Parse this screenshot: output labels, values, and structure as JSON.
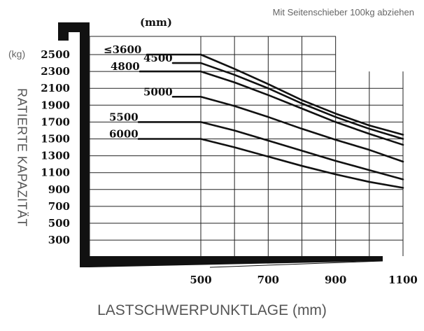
{
  "note": "Mit Seitenschieber 100kg abziehen",
  "y_unit": "(kg)",
  "height_unit": "(mm)",
  "ylabel": "RATIERTE KAPAZITÄT",
  "xlabel": "LASTSCHWERPUNKTLAGE (mm)",
  "chart_data": {
    "type": "line",
    "title": "",
    "xlabel": "LASTSCHWERPUNKTLAGE (mm)",
    "ylabel": "RATIERTE KAPAZITÄT",
    "x_unit": "mm",
    "y_unit": "kg",
    "x_ticks": [
      500,
      700,
      900,
      1100
    ],
    "y_ticks": [
      2500,
      2300,
      2100,
      1900,
      1700,
      1500,
      1300,
      1100,
      900,
      700,
      500,
      300
    ],
    "xlim": [
      500,
      1100
    ],
    "grid": true,
    "series": [
      {
        "name": "≤3600",
        "x": [
          500,
          600,
          700,
          800,
          900,
          1000,
          1100
        ],
        "y": [
          2500,
          2330,
          2150,
          1960,
          1800,
          1660,
          1550
        ]
      },
      {
        "name": "4500",
        "x": [
          500,
          600,
          700,
          800,
          900,
          1000,
          1100
        ],
        "y": [
          2400,
          2260,
          2100,
          1920,
          1760,
          1620,
          1500
        ]
      },
      {
        "name": "4800",
        "x": [
          500,
          600,
          700,
          800,
          900,
          1000,
          1100
        ],
        "y": [
          2300,
          2170,
          2020,
          1860,
          1700,
          1560,
          1430
        ]
      },
      {
        "name": "5000",
        "x": [
          500,
          600,
          700,
          800,
          900,
          1000,
          1100
        ],
        "y": [
          2000,
          1890,
          1760,
          1620,
          1490,
          1370,
          1230
        ]
      },
      {
        "name": "5500",
        "x": [
          500,
          600,
          700,
          800,
          900,
          1000,
          1100
        ],
        "y": [
          1700,
          1600,
          1480,
          1360,
          1240,
          1130,
          1020
        ]
      },
      {
        "name": "6000",
        "x": [
          500,
          600,
          700,
          800,
          900,
          1000,
          1100
        ],
        "y": [
          1500,
          1400,
          1290,
          1180,
          1080,
          990,
          920
        ]
      }
    ]
  }
}
